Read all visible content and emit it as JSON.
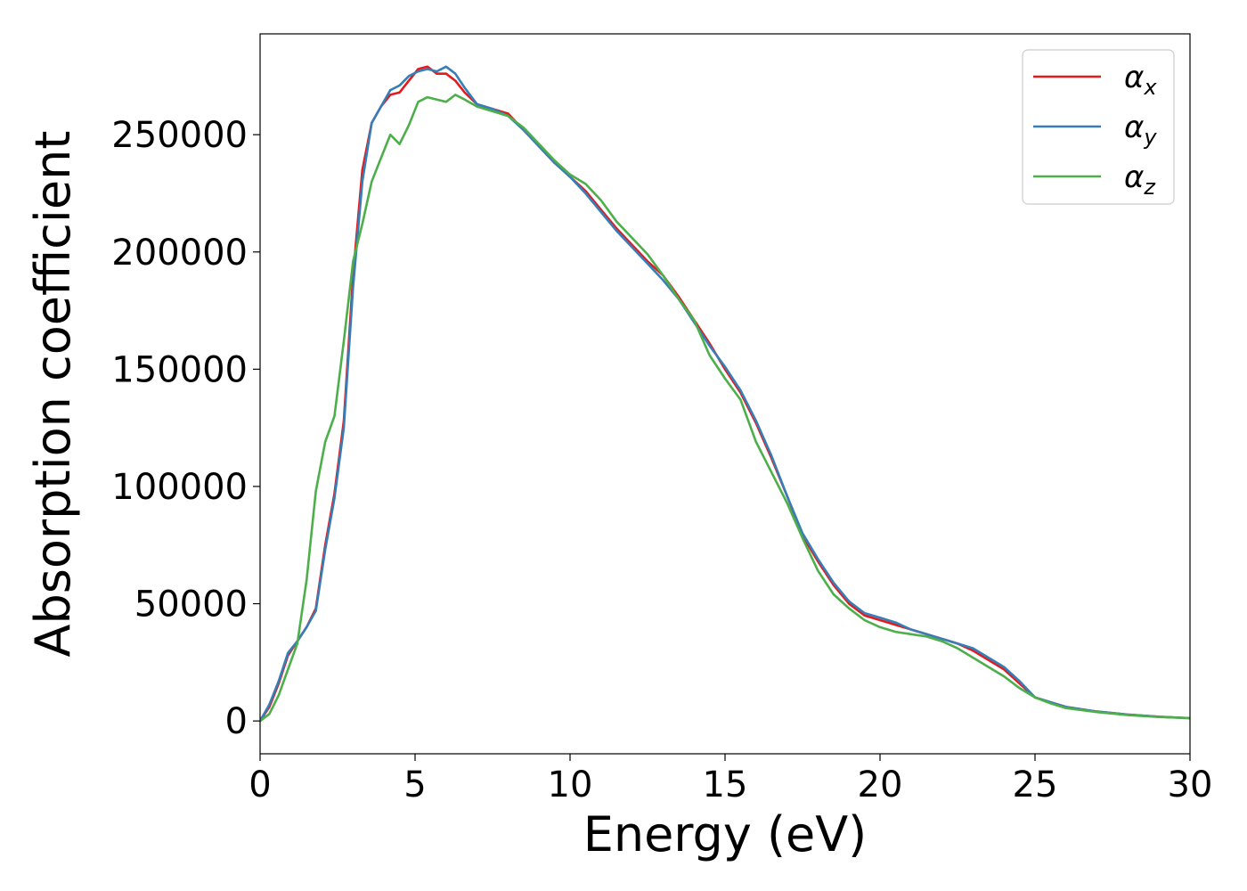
{
  "chart_data": {
    "type": "line",
    "xlabel": "Energy (eV)",
    "ylabel": "Absorption coefficient",
    "xlim": [
      0,
      30
    ],
    "ylim": [
      -14000,
      293000
    ],
    "xticks": [
      0,
      5,
      10,
      15,
      20,
      25,
      30
    ],
    "yticks": [
      0,
      50000,
      100000,
      150000,
      200000,
      250000
    ],
    "grid": false,
    "legend_position": "top-right",
    "series": [
      {
        "name": "α",
        "sub": "x",
        "color": "#e41a1c",
        "x": [
          0,
          0.3,
          0.6,
          0.9,
          1.2,
          1.5,
          1.8,
          2.1,
          2.4,
          2.7,
          3.0,
          3.3,
          3.6,
          3.9,
          4.2,
          4.5,
          4.8,
          5.1,
          5.4,
          5.7,
          6.0,
          6.3,
          6.6,
          7.0,
          7.5,
          8.0,
          8.5,
          9.0,
          9.5,
          10.0,
          10.5,
          11.0,
          11.5,
          12.0,
          12.5,
          13.0,
          13.5,
          14.0,
          14.5,
          15.0,
          15.5,
          16.0,
          16.5,
          17.0,
          17.5,
          18.0,
          18.5,
          19.0,
          19.5,
          20.0,
          20.5,
          21.0,
          21.5,
          22.0,
          22.5,
          23.0,
          23.5,
          24.0,
          24.5,
          25.0,
          25.5,
          26.0,
          27.0,
          28.0,
          29.0,
          30.0
        ],
        "values": [
          0,
          6000,
          16000,
          28000,
          34000,
          40000,
          48000,
          75000,
          97000,
          128000,
          190000,
          235000,
          255000,
          262000,
          267000,
          268000,
          273000,
          278000,
          279000,
          276000,
          276000,
          273000,
          268000,
          263000,
          261000,
          259000,
          252000,
          245000,
          238000,
          232000,
          226000,
          218000,
          210000,
          203000,
          196000,
          190000,
          181000,
          171000,
          161000,
          150000,
          140000,
          127000,
          112000,
          96000,
          79000,
          68000,
          58000,
          50000,
          45000,
          43000,
          41000,
          39000,
          37000,
          35000,
          33000,
          30000,
          26000,
          22000,
          16000,
          10000,
          8000,
          6000,
          4000,
          2700,
          1800,
          1200
        ]
      },
      {
        "name": "α",
        "sub": "y",
        "color": "#377eb8",
        "x": [
          0,
          0.3,
          0.6,
          0.9,
          1.2,
          1.5,
          1.8,
          2.1,
          2.4,
          2.7,
          3.0,
          3.3,
          3.6,
          3.9,
          4.2,
          4.5,
          4.8,
          5.1,
          5.4,
          5.7,
          6.0,
          6.3,
          6.6,
          7.0,
          7.5,
          8.0,
          8.5,
          9.0,
          9.5,
          10.0,
          10.5,
          11.0,
          11.5,
          12.0,
          12.5,
          13.0,
          13.5,
          14.0,
          14.5,
          15.0,
          15.5,
          16.0,
          16.5,
          17.0,
          17.5,
          18.0,
          18.5,
          19.0,
          19.5,
          20.0,
          20.5,
          21.0,
          21.5,
          22.0,
          22.5,
          23.0,
          23.5,
          24.0,
          24.5,
          25.0,
          25.5,
          26.0,
          27.0,
          28.0,
          29.0,
          30.0
        ],
        "values": [
          0,
          7000,
          17000,
          29000,
          34000,
          40000,
          47000,
          73000,
          95000,
          125000,
          185000,
          230000,
          255000,
          262000,
          269000,
          271000,
          275000,
          277000,
          278000,
          277000,
          279000,
          276000,
          270000,
          263000,
          261000,
          258000,
          252000,
          245000,
          238000,
          232000,
          225000,
          217000,
          209000,
          202000,
          195000,
          188000,
          180000,
          170000,
          160000,
          151000,
          141000,
          128000,
          113000,
          96000,
          80000,
          69000,
          59000,
          51000,
          46000,
          44000,
          42000,
          39000,
          37000,
          35000,
          33000,
          31000,
          27000,
          23000,
          17000,
          10000,
          8000,
          6000,
          4000,
          2700,
          1800,
          1200
        ]
      },
      {
        "name": "α",
        "sub": "z",
        "color": "#4daf4a",
        "x": [
          0,
          0.3,
          0.6,
          0.9,
          1.2,
          1.5,
          1.8,
          2.1,
          2.4,
          2.7,
          3.0,
          3.3,
          3.6,
          3.9,
          4.2,
          4.5,
          4.8,
          5.1,
          5.4,
          5.7,
          6.0,
          6.3,
          6.6,
          7.0,
          7.5,
          8.0,
          8.5,
          9.0,
          9.5,
          10.0,
          10.5,
          11.0,
          11.5,
          12.0,
          12.5,
          13.0,
          13.5,
          14.0,
          14.5,
          15.0,
          15.5,
          16.0,
          16.5,
          17.0,
          17.5,
          18.0,
          18.5,
          19.0,
          19.5,
          20.0,
          20.5,
          21.0,
          21.5,
          22.0,
          22.5,
          23.0,
          23.5,
          24.0,
          24.5,
          25.0,
          25.5,
          26.0,
          27.0,
          28.0,
          29.0,
          30.0
        ],
        "values": [
          0,
          3000,
          11000,
          22000,
          33000,
          60000,
          98000,
          119000,
          130000,
          162000,
          196000,
          212000,
          230000,
          240000,
          250000,
          246000,
          254000,
          264000,
          266000,
          265000,
          264000,
          267000,
          265000,
          262000,
          260000,
          258000,
          253000,
          246000,
          239000,
          233000,
          229000,
          222000,
          213000,
          206000,
          199000,
          190000,
          180000,
          171000,
          156000,
          146000,
          137000,
          119000,
          106000,
          93000,
          78000,
          64000,
          54000,
          48000,
          43000,
          40000,
          38000,
          37000,
          36000,
          34000,
          31000,
          27000,
          23000,
          19000,
          14000,
          10000,
          7500,
          5500,
          3800,
          2500,
          1700,
          1200
        ]
      }
    ]
  }
}
